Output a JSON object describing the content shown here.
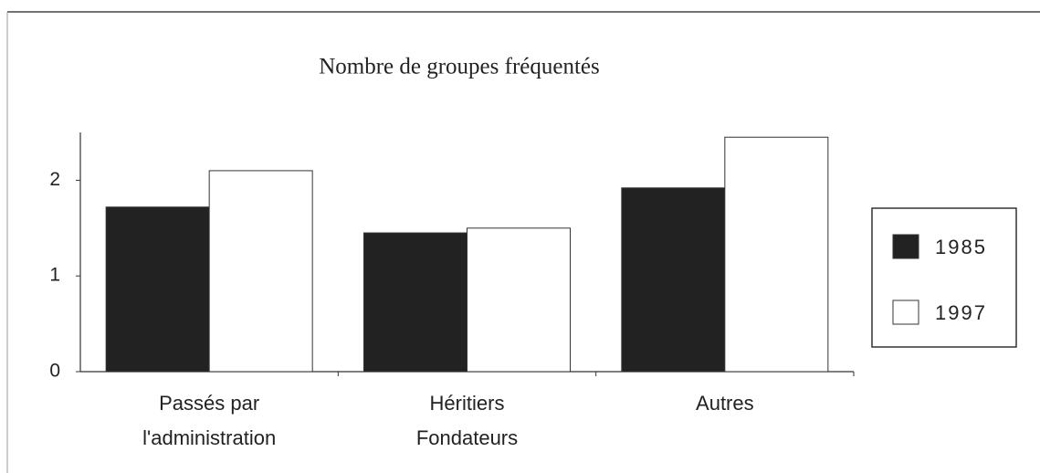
{
  "chart_data": {
    "type": "bar",
    "title": "Nombre de groupes fréquentés",
    "categories": [
      [
        "Passés par",
        "l'administration"
      ],
      [
        "Héritiers",
        "Fondateurs"
      ],
      [
        "Autres"
      ]
    ],
    "series": [
      {
        "name": "1985",
        "color": "#222222",
        "values": [
          1.72,
          1.45,
          1.92
        ]
      },
      {
        "name": "1997",
        "color": "#ffffff",
        "values": [
          2.1,
          1.5,
          2.45
        ]
      }
    ],
    "ylim": [
      0,
      2.5
    ],
    "yticks": [
      0,
      1,
      2
    ],
    "legend": "right"
  }
}
